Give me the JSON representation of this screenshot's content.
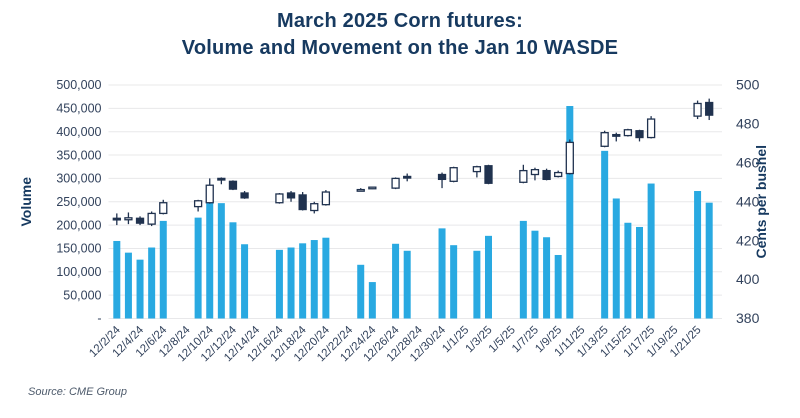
{
  "title": {
    "line1": "March 2025 Corn futures:",
    "line2": "Volume and Movement on the Jan 10 WASDE"
  },
  "source": "Source: CME Group",
  "colors": {
    "title_navy": "#173a60",
    "axis_text": "#32425c",
    "gridline": "#e8e8ea",
    "volume_bar_blue": "#29a9e1",
    "candle_navy": "#20324f",
    "candle_up_fill": "#ffffff",
    "background": "#ffffff"
  },
  "chart_data": {
    "type": "bar",
    "subtype": "volume-bars-with-price-candlesticks",
    "title": "March 2025 Corn futures: Volume and Movement on the Jan 10 WASDE",
    "grid": "horizontal-only",
    "legend_position": "none",
    "x_axis": {
      "start_date": "12/2/24",
      "end_date": "1/22/25",
      "total_day_slots": 52,
      "tick_day_offsets": [
        0,
        2,
        4,
        6,
        8,
        10,
        12,
        14,
        16,
        18,
        20,
        22,
        24,
        26,
        28,
        30,
        32,
        34,
        36,
        38,
        40,
        42,
        44,
        46,
        48,
        50
      ],
      "tick_labels": [
        "12/2/24",
        "12/4/24",
        "12/6/24",
        "12/8/24",
        "12/10/24",
        "12/12/24",
        "12/14/24",
        "12/16/24",
        "12/18/24",
        "12/20/24",
        "12/22/24",
        "12/24/24",
        "12/26/24",
        "12/28/24",
        "12/30/24",
        "1/1/25",
        "1/3/25",
        "1/5/25",
        "1/7/25",
        "1/9/25",
        "1/11/25",
        "1/13/25",
        "1/15/25",
        "1/17/25",
        "1/19/25",
        "1/21/25"
      ]
    },
    "y_left": {
      "label": "Volume",
      "min": 0,
      "max": 500000,
      "tick_values": [
        0,
        50000,
        100000,
        150000,
        200000,
        250000,
        300000,
        350000,
        400000,
        450000,
        500000
      ],
      "tick_labels": [
        "-",
        "50,000",
        "100,000",
        "150,000",
        "200,000",
        "250,000",
        "300,000",
        "350,000",
        "400,000",
        "450,000",
        "500,000"
      ]
    },
    "y_right": {
      "label": "Cents per bushel",
      "min": 380,
      "max": 500,
      "tick_values": [
        380,
        400,
        420,
        440,
        460,
        480,
        500
      ],
      "tick_labels": [
        "380",
        "400",
        "420",
        "440",
        "460",
        "480",
        "500"
      ]
    },
    "days": [
      {
        "date": "12/2/24",
        "day": 0,
        "volume": 166000,
        "open": 431.5,
        "high": 434,
        "low": 428,
        "close": 430.75
      },
      {
        "date": "12/3/24",
        "day": 1,
        "volume": 141000,
        "open": 430.75,
        "high": 434.5,
        "low": 428.5,
        "close": 431.75
      },
      {
        "date": "12/4/24",
        "day": 2,
        "volume": 126000,
        "open": 431.5,
        "high": 432.5,
        "low": 428,
        "close": 429
      },
      {
        "date": "12/5/24",
        "day": 3,
        "volume": 152000,
        "open": 428.5,
        "high": 435,
        "low": 427.5,
        "close": 434
      },
      {
        "date": "12/6/24",
        "day": 4,
        "volume": 209000,
        "open": 434,
        "high": 441,
        "low": 433.5,
        "close": 439.5
      },
      {
        "date": "12/9/24",
        "day": 7,
        "volume": 216000,
        "open": 437.5,
        "high": 441,
        "low": 435,
        "close": 440.5
      },
      {
        "date": "12/10/24",
        "day": 8,
        "volume": 249000,
        "open": 439.5,
        "high": 452,
        "low": 439,
        "close": 448.5
      },
      {
        "date": "12/11/24",
        "day": 9,
        "volume": 247000,
        "open": 452,
        "high": 452.5,
        "low": 449,
        "close": 451.75
      },
      {
        "date": "12/12/24",
        "day": 10,
        "volume": 206000,
        "open": 450.5,
        "high": 451,
        "low": 446,
        "close": 446.5
      },
      {
        "date": "12/13/24",
        "day": 11,
        "volume": 159000,
        "open": 444.5,
        "high": 445.5,
        "low": 441.5,
        "close": 442
      },
      {
        "date": "12/16/24",
        "day": 14,
        "volume": 147000,
        "open": 439.5,
        "high": 444.5,
        "low": 439,
        "close": 444
      },
      {
        "date": "12/17/24",
        "day": 15,
        "volume": 152000,
        "open": 444.5,
        "high": 445.5,
        "low": 440,
        "close": 442
      },
      {
        "date": "12/18/24",
        "day": 16,
        "volume": 161000,
        "open": 443.5,
        "high": 445,
        "low": 435.5,
        "close": 436
      },
      {
        "date": "12/19/24",
        "day": 17,
        "volume": 168000,
        "open": 435.5,
        "high": 440,
        "low": 434,
        "close": 439
      },
      {
        "date": "12/20/24",
        "day": 18,
        "volume": 173000,
        "open": 438.5,
        "high": 446,
        "low": 438,
        "close": 445
      },
      {
        "date": "12/23/24",
        "day": 21,
        "volume": 115000,
        "open": 446,
        "high": 447,
        "low": 445.5,
        "close": 446.25
      },
      {
        "date": "12/24/24",
        "day": 22,
        "volume": 78000,
        "open": 447,
        "high": 447.75,
        "low": 446.5,
        "close": 447.5
      },
      {
        "date": "12/26/24",
        "day": 24,
        "volume": 160000,
        "open": 447,
        "high": 452.5,
        "low": 446.5,
        "close": 452
      },
      {
        "date": "12/27/24",
        "day": 25,
        "volume": 145000,
        "open": 453,
        "high": 454.5,
        "low": 450.5,
        "close": 452.25
      },
      {
        "date": "12/30/24",
        "day": 28,
        "volume": 193000,
        "open": 454,
        "high": 455,
        "low": 447,
        "close": 451.5
      },
      {
        "date": "12/31/24",
        "day": 29,
        "volume": 157000,
        "open": 450.5,
        "high": 458,
        "low": 450,
        "close": 457.5
      },
      {
        "date": "1/2/25",
        "day": 31,
        "volume": 145000,
        "open": 455.5,
        "high": 458.5,
        "low": 452.5,
        "close": 458
      },
      {
        "date": "1/3/25",
        "day": 32,
        "volume": 177000,
        "open": 458.5,
        "high": 459,
        "low": 449,
        "close": 449.5
      },
      {
        "date": "1/6/25",
        "day": 35,
        "volume": 209000,
        "open": 450,
        "high": 459,
        "low": 449.5,
        "close": 456
      },
      {
        "date": "1/7/25",
        "day": 36,
        "volume": 188000,
        "open": 454,
        "high": 457.5,
        "low": 451,
        "close": 456.5
      },
      {
        "date": "1/8/25",
        "day": 37,
        "volume": 174000,
        "open": 456,
        "high": 457,
        "low": 451,
        "close": 451.5
      },
      {
        "date": "1/9/25",
        "day": 38,
        "volume": 136000,
        "open": 453,
        "high": 456,
        "low": 452.5,
        "close": 455
      },
      {
        "date": "1/10/25",
        "day": 39,
        "volume": 455000,
        "open": 454.5,
        "high": 472,
        "low": 454,
        "close": 470.5
      },
      {
        "date": "1/13/25",
        "day": 42,
        "volume": 359000,
        "open": 468.5,
        "high": 476.5,
        "low": 468,
        "close": 475.5
      },
      {
        "date": "1/14/25",
        "day": 43,
        "volume": 257000,
        "open": 474.5,
        "high": 475.5,
        "low": 471,
        "close": 474
      },
      {
        "date": "1/15/25",
        "day": 44,
        "volume": 205000,
        "open": 474,
        "high": 477.5,
        "low": 473.5,
        "close": 477
      },
      {
        "date": "1/16/25",
        "day": 45,
        "volume": 196000,
        "open": 476.5,
        "high": 477,
        "low": 471,
        "close": 473
      },
      {
        "date": "1/17/25",
        "day": 46,
        "volume": 289000,
        "open": 473,
        "high": 484,
        "low": 472.5,
        "close": 482.5
      },
      {
        "date": "1/21/25",
        "day": 50,
        "volume": 273000,
        "open": 484,
        "high": 492,
        "low": 482.5,
        "close": 490.5
      },
      {
        "date": "1/22/25",
        "day": 51,
        "volume": 248000,
        "open": 491,
        "high": 493,
        "low": 482,
        "close": 484.5
      }
    ]
  }
}
